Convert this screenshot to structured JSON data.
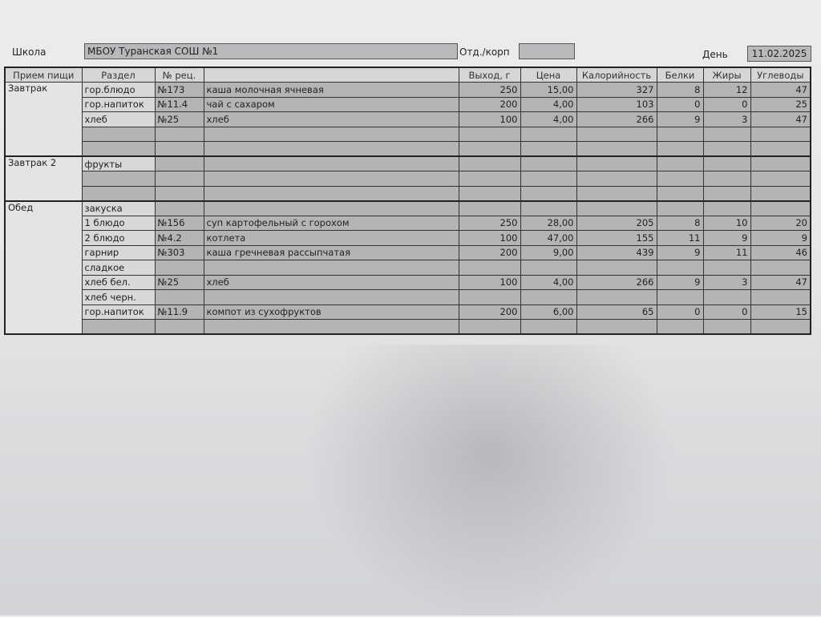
{
  "header": {
    "school_label": "Школа",
    "school_value": "МБОУ Туранская СОШ №1",
    "dept_label": "Отд./корп",
    "dept_value": "",
    "day_label": "День",
    "date_value": "11.02.2025"
  },
  "columns": [
    "Прием пищи",
    "Раздел",
    "№ рец.",
    "",
    "Выход, г",
    "Цена",
    "Калорийность",
    "Белки",
    "Жиры",
    "Углеводы"
  ],
  "meals": [
    {
      "name": "Завтрак",
      "rows": [
        [
          "гор.блюдо",
          "№173",
          "каша молочная ячневая",
          "250",
          "15,00",
          "327",
          "8",
          "12",
          "47"
        ],
        [
          "гор.напиток",
          "№11.4",
          "чай с сахаром",
          "200",
          "4,00",
          "103",
          "0",
          "0",
          "25"
        ],
        [
          "хлеб",
          "№25",
          "хлеб",
          "100",
          "4,00",
          "266",
          "9",
          "3",
          "47"
        ],
        [
          "",
          "",
          "",
          "",
          "",
          "",
          "",
          "",
          ""
        ],
        [
          "",
          "",
          "",
          "",
          "",
          "",
          "",
          "",
          ""
        ]
      ]
    },
    {
      "name": "Завтрак 2",
      "rows": [
        [
          "фрукты",
          "",
          "",
          "",
          "",
          "",
          "",
          "",
          ""
        ],
        [
          "",
          "",
          "",
          "",
          "",
          "",
          "",
          "",
          ""
        ],
        [
          "",
          "",
          "",
          "",
          "",
          "",
          "",
          "",
          ""
        ]
      ]
    },
    {
      "name": "Обед",
      "rows": [
        [
          "закуска",
          "",
          "",
          "",
          "",
          "",
          "",
          "",
          ""
        ],
        [
          "1 блюдо",
          "№156",
          "суп картофельный с горохом",
          "250",
          "28,00",
          "205",
          "8",
          "10",
          "20"
        ],
        [
          "2 блюдо",
          "№4.2",
          "котлета",
          "100",
          "47,00",
          "155",
          "11",
          "9",
          "9"
        ],
        [
          "гарнир",
          "№303",
          "каша гречневая рассыпчатая",
          "200",
          "9,00",
          "439",
          "9",
          "11",
          "46"
        ],
        [
          "сладкое",
          "",
          "",
          "",
          "",
          "",
          "",
          "",
          ""
        ],
        [
          "хлеб бел.",
          "№25",
          "хлеб",
          "100",
          "4,00",
          "266",
          "9",
          "3",
          "47"
        ],
        [
          "хлеб черн.",
          "",
          "",
          "",
          "",
          "",
          "",
          "",
          ""
        ],
        [
          "гор.напиток",
          "№11.9",
          "компот из сухофруктов",
          "200",
          "6,00",
          "65",
          "0",
          "0",
          "15"
        ],
        [
          "",
          "",
          "",
          "",
          "",
          "",
          "",
          "",
          ""
        ]
      ]
    }
  ]
}
